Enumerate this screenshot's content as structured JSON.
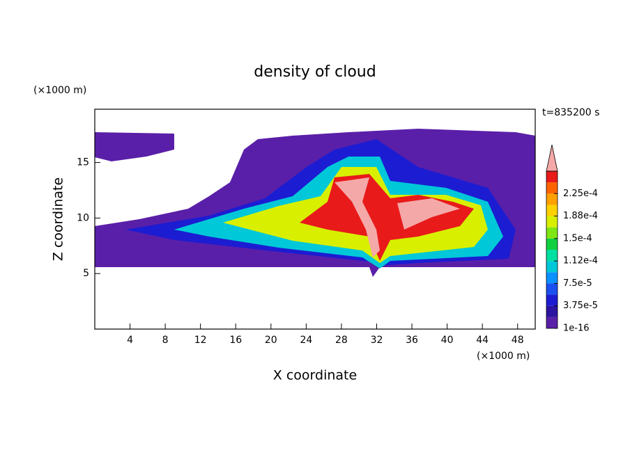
{
  "chart_data": {
    "type": "contour",
    "title": "density of cloud",
    "x_label": "X coordinate",
    "y_label": "Z coordinate",
    "x_unit": "(×1000 m)",
    "y_unit": "(×1000 m)",
    "annotation": "t=835200 s",
    "xlim": [
      0,
      50
    ],
    "xticks": [
      4,
      8,
      12,
      16,
      20,
      24,
      28,
      32,
      36,
      40,
      44,
      48
    ],
    "ylim": [
      0,
      19.8
    ],
    "yticks": [
      5,
      10,
      15
    ],
    "colorbar": {
      "levels": [
        1e-16,
        1.875e-05,
        3.75e-05,
        5.625e-05,
        7.5e-05,
        9.375e-05,
        0.0001125,
        0.00013125,
        0.00015,
        0.00016875,
        0.0001875,
        0.00020625,
        0.000225,
        0.00024375,
        0.0002625
      ],
      "colors": [
        "#5a1fa8",
        "#2a14a0",
        "#1c1cd2",
        "#1a50f0",
        "#0a90ff",
        "#00c8d8",
        "#00e0a0",
        "#10d040",
        "#80e614",
        "#d8f000",
        "#ffd000",
        "#ffa000",
        "#ff6400",
        "#e81a1a",
        "#f4a8a8"
      ],
      "ticks": [
        1e-16,
        {
          "value": 3.75e-05,
          "label": "3.75e-5"
        },
        {
          "value": 7.5e-05,
          "label": "7.5e-5"
        },
        {
          "value": 0.0001125,
          "label": "1.12e-4"
        },
        {
          "value": 0.00015,
          "label": "1.5e-4"
        },
        {
          "value": 0.0001875,
          "label": "1.88e-4"
        },
        {
          "value": 0.000225,
          "label": "2.25e-4"
        }
      ]
    }
  }
}
